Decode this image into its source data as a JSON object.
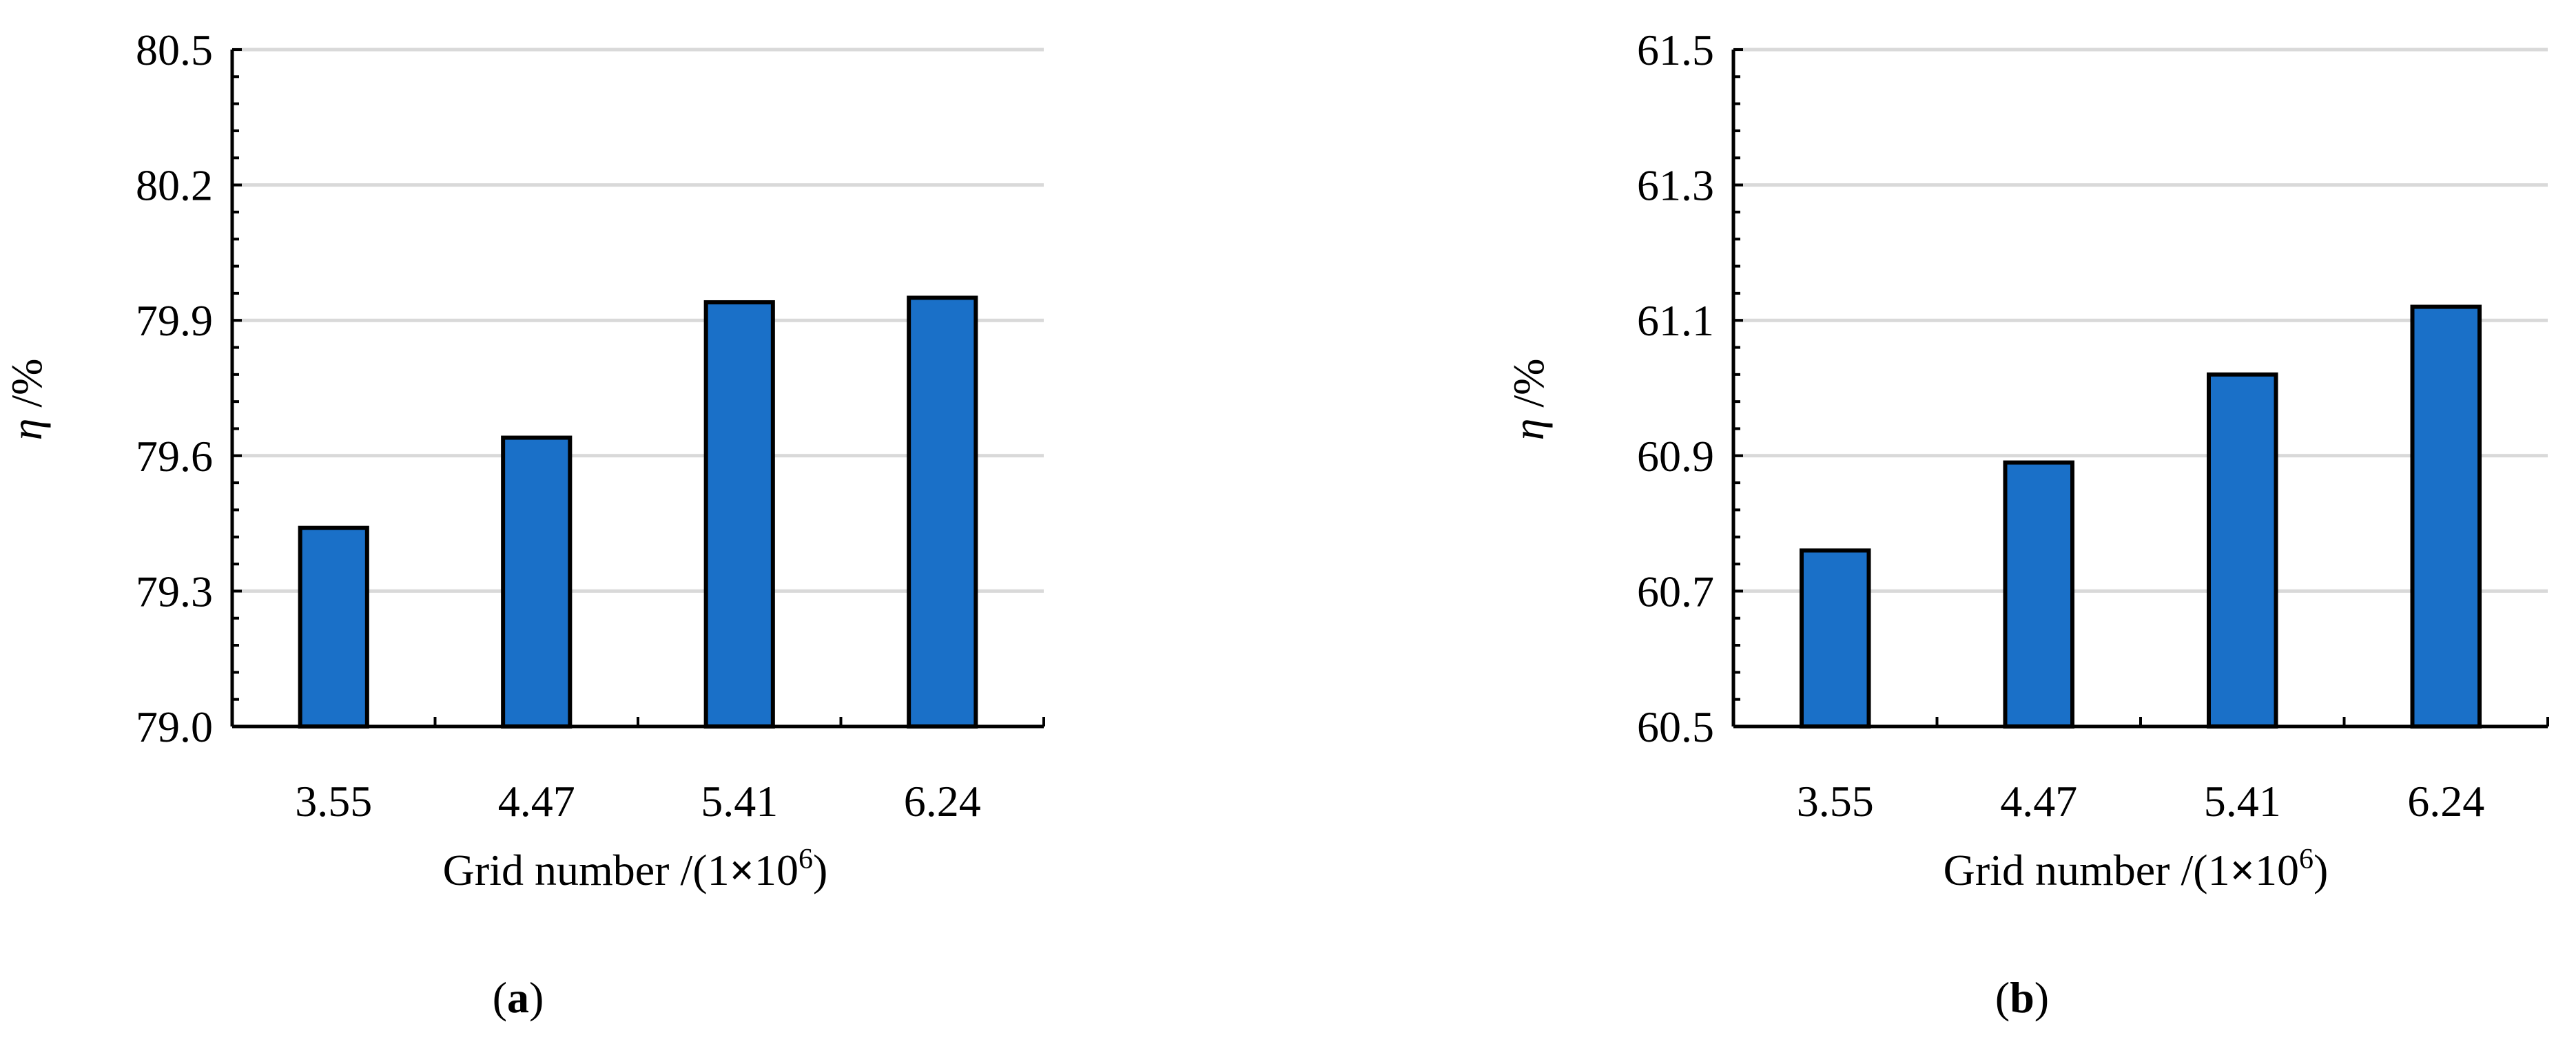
{
  "chart_data": [
    {
      "type": "bar",
      "panel_label": "a",
      "categories": [
        "3.55",
        "4.47",
        "5.41",
        "6.24"
      ],
      "values": [
        79.44,
        79.64,
        79.94,
        79.95
      ],
      "xlabel": {
        "prefix": "Grid number /(1",
        "times": "×",
        "base": "10",
        "exp": "6",
        "suffix": ")"
      },
      "ylabel": {
        "symbol": "η",
        "unit": " /%"
      },
      "ylim": [
        79.0,
        80.5
      ],
      "yticks": [
        "79.0",
        "79.3",
        "79.6",
        "79.9",
        "80.2",
        "80.5"
      ],
      "grid": true,
      "legend": "none",
      "bar_color": "#1a70c8"
    },
    {
      "type": "bar",
      "panel_label": "b",
      "categories": [
        "3.55",
        "4.47",
        "5.41",
        "6.24"
      ],
      "values": [
        60.76,
        60.89,
        61.02,
        61.12
      ],
      "xlabel": {
        "prefix": "Grid number /(1",
        "times": "×",
        "base": "10",
        "exp": "6",
        "suffix": ")"
      },
      "ylabel": {
        "symbol": "η",
        "unit": " /%"
      },
      "ylim": [
        60.5,
        61.5
      ],
      "yticks": [
        "60.5",
        "60.7",
        "60.9",
        "61.1",
        "61.3",
        "61.5"
      ],
      "grid": true,
      "legend": "none",
      "bar_color": "#1a70c8"
    }
  ]
}
